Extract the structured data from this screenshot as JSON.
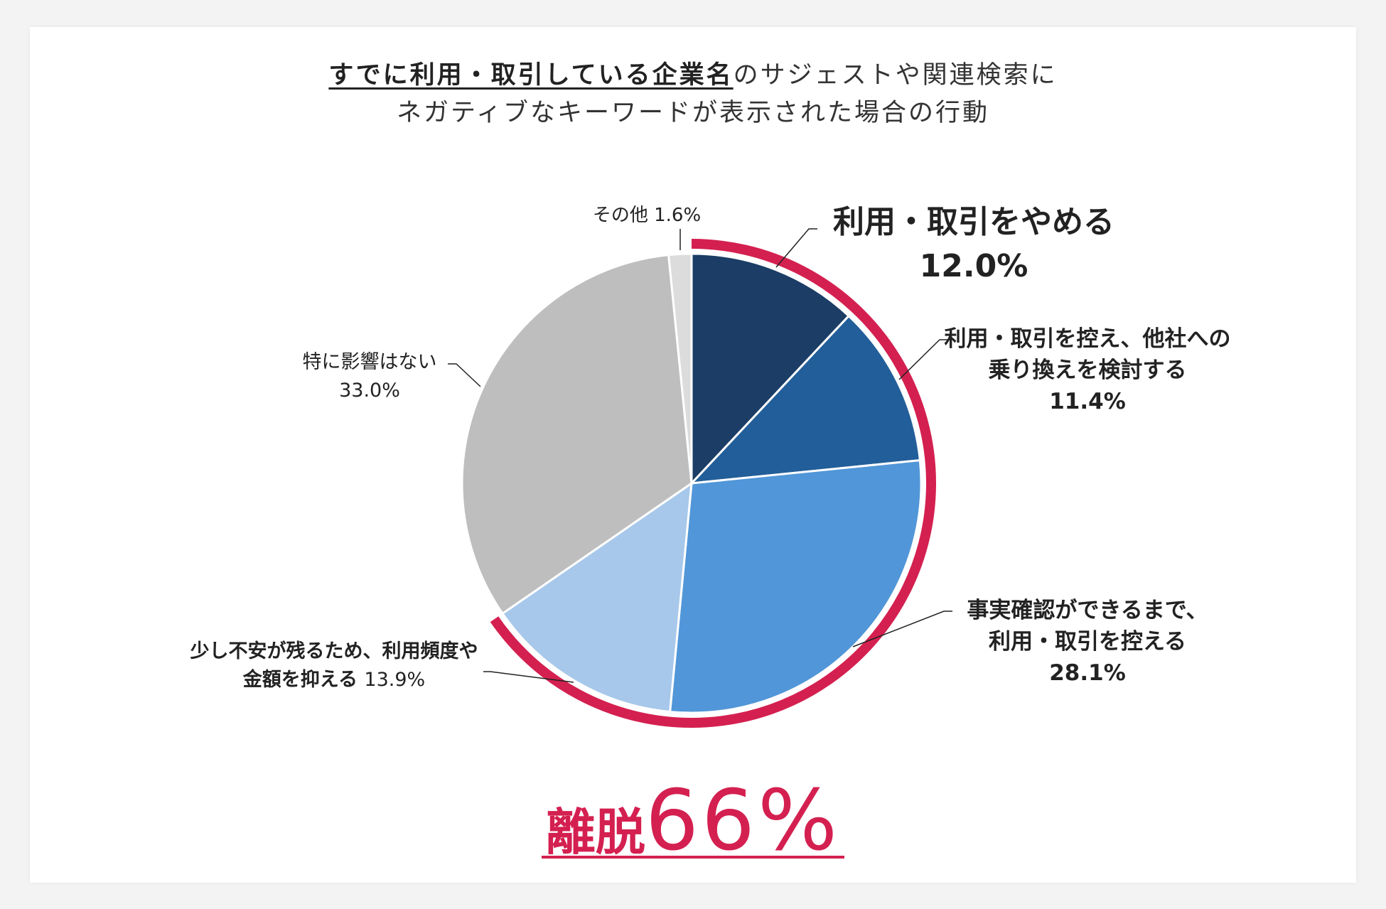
{
  "title": {
    "line1_emphasis": "すでに利用・取引している企業名",
    "line1_rest": "のサジェストや関連検索に",
    "line2": "ネガティブなキーワードが表示された場合の行動"
  },
  "labels": {
    "quit": {
      "line1": "利用・取引をやめる",
      "line2": "12.0%"
    },
    "switch": {
      "line1": "利用・取引を控え、他社への",
      "line2": "乗り換えを検討する",
      "line3": "11.4%"
    },
    "refrain": {
      "line1": "事実確認ができるまで、",
      "line2": "利用・取引を控える",
      "line3": "28.1%"
    },
    "reduce": {
      "line1": "少し不安が残るため、利用頻度や",
      "line2": "金額を抑える",
      "pct": "13.9%"
    },
    "none": {
      "line1": "特に影響はない",
      "line2": "33.0%"
    },
    "other": {
      "line1": "その他 1.6%"
    }
  },
  "summary": {
    "word": "離脱",
    "value": "66%"
  },
  "chart_data": {
    "type": "pie",
    "title": "すでに利用・取引している企業名のサジェストや関連検索にネガティブなキーワードが表示された場合の行動",
    "start": "12 o'clock, clockwise",
    "slices": [
      {
        "label": "利用・取引をやめる",
        "value": 12.0,
        "color": "#1b3d66"
      },
      {
        "label": "利用・取引を控え、他社への乗り換えを検討する",
        "value": 11.4,
        "color": "#225e99"
      },
      {
        "label": "事実確認ができるまで、利用・取引を控える",
        "value": 28.1,
        "color": "#5196d8"
      },
      {
        "label": "少し不安が残るため、利用頻度や金額を抑える",
        "value": 13.9,
        "color": "#a7c8ea"
      },
      {
        "label": "特に影響はない",
        "value": 33.0,
        "color": "#bebebe"
      },
      {
        "label": "その他",
        "value": 1.6,
        "color": "#dcdcdc"
      }
    ],
    "highlight": {
      "label": "離脱",
      "value": 66,
      "covers_first_n_slices": 4,
      "color": "#d42050"
    }
  }
}
